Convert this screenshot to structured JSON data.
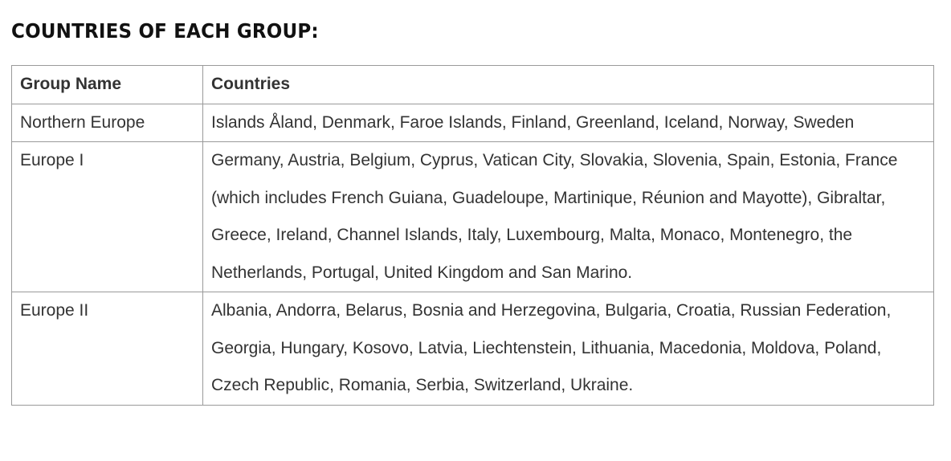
{
  "title": "COUNTRIES OF EACH GROUP:",
  "table": {
    "headers": {
      "group_name": "Group Name",
      "countries": "Countries"
    },
    "rows": [
      {
        "group": "Northern Europe",
        "countries": "Islands Åland, Denmark, Faroe Islands, Finland, Greenland, Iceland, Norway, Sweden"
      },
      {
        "group": "Europe I",
        "countries": "Germany, Austria, Belgium, Cyprus, Vatican City, Slovakia, Slovenia, Spain, Estonia, France (which includes French Guiana, Guadeloupe, Martinique, Réunion and Mayotte), Gibraltar, Greece, Ireland, Channel Islands, Italy, Luxembourg, Malta, Monaco, Montenegro, the Netherlands, Portugal, United Kingdom and San Marino."
      },
      {
        "group": "Europe II",
        "countries": "Albania, Andorra, Belarus, Bosnia and Herzegovina, Bulgaria, Croatia, Russian Federation, Georgia, Hungary, Kosovo, Latvia, Liechtenstein, Lithuania, Macedonia, Moldova, Poland, Czech Republic, Romania, Serbia, Switzerland, Ukraine."
      }
    ]
  }
}
